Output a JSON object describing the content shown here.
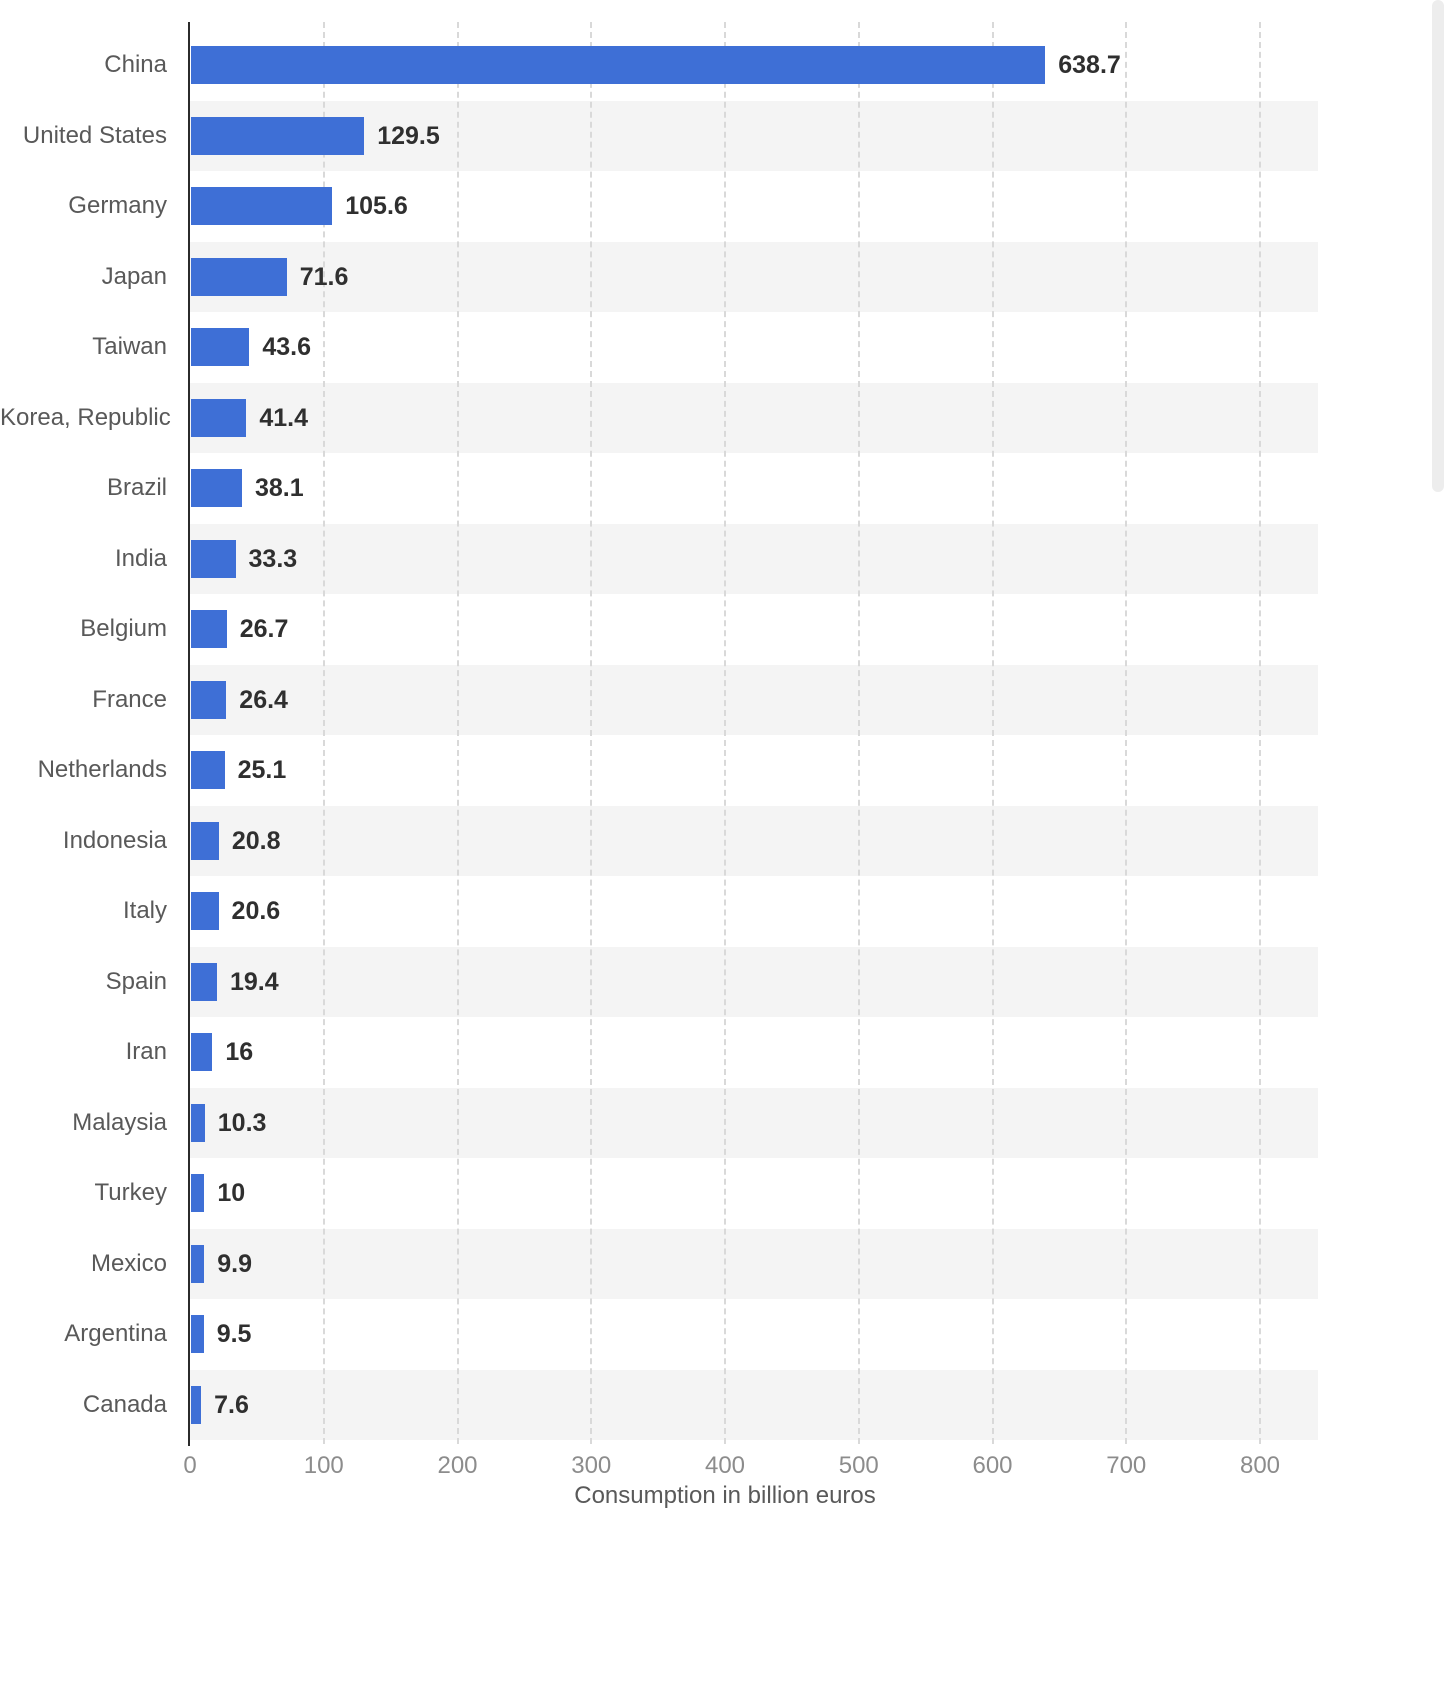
{
  "chart_data": {
    "type": "bar",
    "orientation": "horizontal",
    "title": "",
    "xlabel": "Consumption in billion euros",
    "ylabel": "",
    "xlim": [
      0,
      800
    ],
    "x_ticks": [
      0,
      100,
      200,
      300,
      400,
      500,
      600,
      700,
      800
    ],
    "grid": "vertical-dashed",
    "legend": "none",
    "bar_color": "#3e6fd6",
    "stripe_color": "#f4f4f4",
    "categories": [
      "China",
      "United States",
      "Germany",
      "Japan",
      "Taiwan",
      "Korea, Republic",
      "Brazil",
      "India",
      "Belgium",
      "France",
      "Netherlands",
      "Indonesia",
      "Italy",
      "Spain",
      "Iran",
      "Malaysia",
      "Turkey",
      "Mexico",
      "Argentina",
      "Canada"
    ],
    "values": [
      638.7,
      129.5,
      105.6,
      71.6,
      43.6,
      41.4,
      38.1,
      33.3,
      26.7,
      26.4,
      25.1,
      20.8,
      20.6,
      19.4,
      16,
      10.3,
      10,
      9.9,
      9.5,
      7.6
    ],
    "value_labels": [
      "638.7",
      "129.5",
      "105.6",
      "71.6",
      "43.6",
      "41.4",
      "38.1",
      "33.3",
      "26.7",
      "26.4",
      "25.1",
      "20.8",
      "20.6",
      "19.4",
      "16",
      "10.3",
      "10",
      "9.9",
      "9.5",
      "7.6"
    ]
  }
}
